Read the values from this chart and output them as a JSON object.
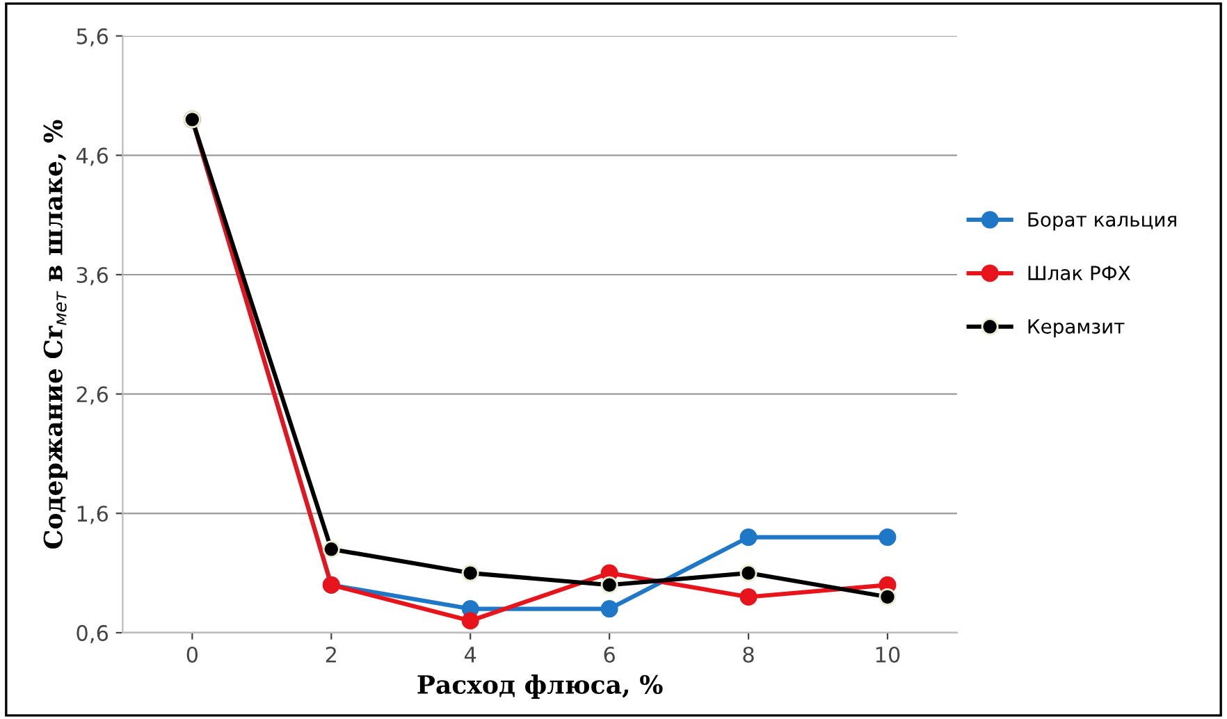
{
  "chart_data": {
    "type": "line",
    "xlabel": "Расход флюса, %",
    "ylabel": "Содержание Cr$_{мет}$ в шлаке, %",
    "categories": [
      "0",
      "2",
      "4",
      "6",
      "8",
      "10"
    ],
    "series": [
      {
        "name": "Борат кальция",
        "color": "#1f77c8",
        "values": [
          4.9,
          1.0,
          0.8,
          0.8,
          1.4,
          1.4
        ]
      },
      {
        "name": "Шлак РФХ",
        "color": "#e8141c",
        "values": [
          4.9,
          1.0,
          0.7,
          1.1,
          0.9,
          1.0
        ]
      },
      {
        "name": "Керамзит",
        "color": "#000000",
        "values": [
          4.9,
          1.3,
          1.1,
          1.0,
          1.1,
          0.9
        ]
      }
    ],
    "ylim": [
      0.6,
      5.6
    ],
    "yticks": [
      {
        "value": 0.6,
        "label": "0,6"
      },
      {
        "value": 1.6,
        "label": "1,6"
      },
      {
        "value": 2.6,
        "label": "2,6"
      },
      {
        "value": 3.6,
        "label": "3,6"
      },
      {
        "value": 4.6,
        "label": "4,6"
      },
      {
        "value": 5.6,
        "label": "5,6"
      }
    ],
    "grid": "y",
    "legend": "right",
    "marker": "circle",
    "line_style": "solid"
  }
}
